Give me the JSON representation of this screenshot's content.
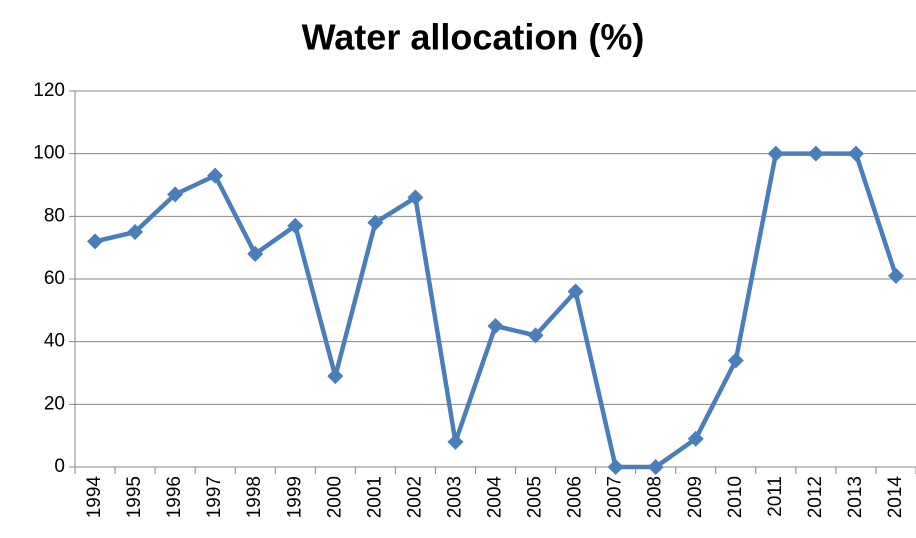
{
  "chart_data": {
    "type": "line",
    "title": "Water allocation (%)",
    "categories": [
      "1994",
      "1995",
      "1996",
      "1997",
      "1998",
      "1999",
      "2000",
      "2001",
      "2002",
      "2003",
      "2004",
      "2005",
      "2006",
      "2007",
      "2008",
      "2009",
      "2010",
      "2011",
      "2012",
      "2013",
      "2014"
    ],
    "values": [
      72,
      75,
      87,
      93,
      68,
      77,
      29,
      78,
      86,
      8,
      45,
      42,
      56,
      0,
      0,
      9,
      34,
      100,
      100,
      100,
      61
    ],
    "color": "#4a7ebb",
    "ylim": [
      0,
      120
    ],
    "yticks": [
      0,
      20,
      40,
      60,
      80,
      100,
      120
    ],
    "grid": true
  }
}
